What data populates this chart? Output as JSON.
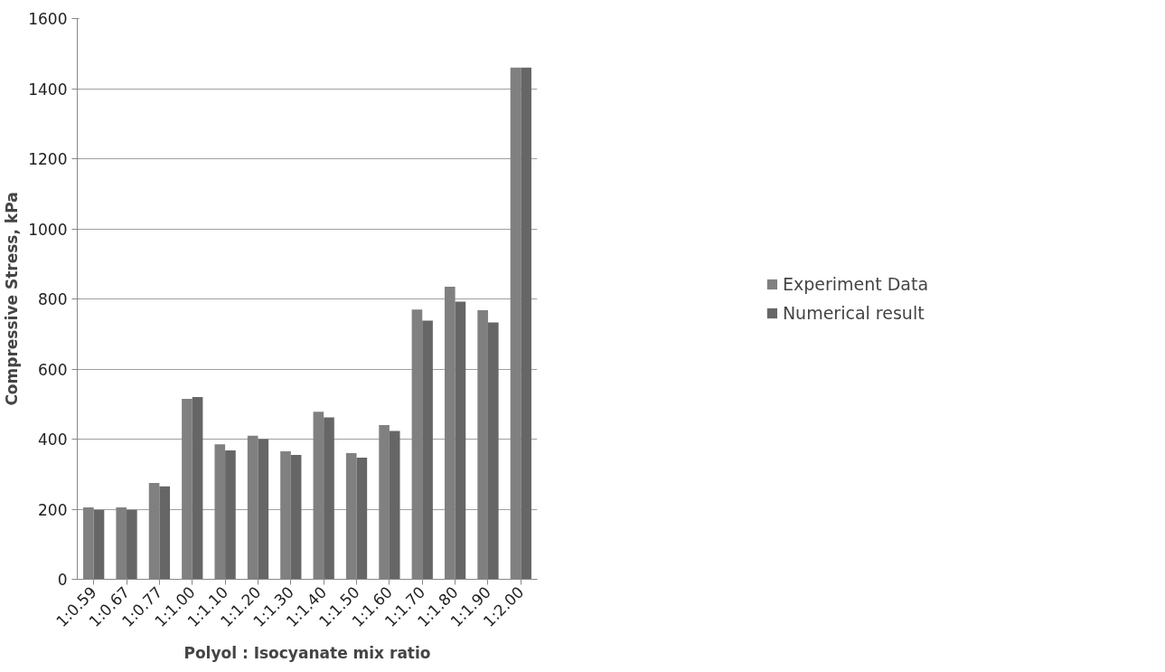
{
  "chart_data": {
    "type": "bar",
    "xlabel": "Polyol : Isocyanate mix ratio",
    "ylabel": "Compressive Stress, kPa",
    "categories": [
      "1:0.59",
      "1:0.67",
      "1:0.77",
      "1:1.00",
      "1:1.10",
      "1:1.20",
      "1:1.30",
      "1:1.40",
      "1:1.50",
      "1:1.60",
      "1:1.70",
      "1:1.80",
      "1:1.90",
      "1:2.00"
    ],
    "series": [
      {
        "name": "Experiment Data",
        "color": "#808080",
        "values": [
          205,
          205,
          275,
          515,
          385,
          410,
          365,
          478,
          360,
          440,
          770,
          835,
          768,
          1460
        ]
      },
      {
        "name": "Numerical result",
        "color": "#666666",
        "values": [
          198,
          198,
          265,
          520,
          368,
          400,
          355,
          462,
          347,
          423,
          738,
          792,
          733,
          1460
        ]
      }
    ],
    "ylim": [
      0,
      1600
    ],
    "yticks": [
      0,
      200,
      400,
      600,
      800,
      1000,
      1200,
      1400,
      1600
    ],
    "grid": "y",
    "legend": "right"
  }
}
